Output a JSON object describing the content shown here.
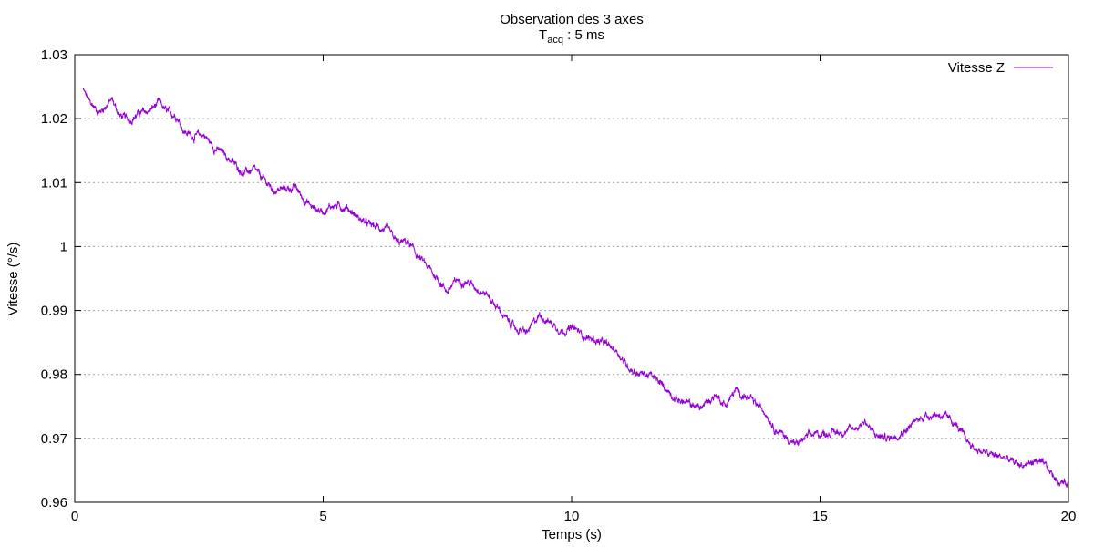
{
  "chart_data": {
    "type": "line",
    "title": "Observation des 3 axes",
    "subtitle": {
      "prefix": "T",
      "sub": "acq",
      "suffix": " : 5 ms"
    },
    "xlabel": "Temps (s)",
    "ylabel": "Vitesse (°/s)",
    "xlim": [
      0,
      20
    ],
    "ylim": [
      0.96,
      1.03
    ],
    "xticks": [
      "0",
      "5",
      "10",
      "15",
      "20"
    ],
    "yticks": [
      "0.96",
      "0.97",
      "0.98",
      "0.99",
      "1",
      "1.01",
      "1.02",
      "1.03"
    ],
    "grid": "horizontal dotted",
    "legend_position": "top-right",
    "series": [
      {
        "name": "Vitesse Z",
        "color": "#9400d3",
        "sample_period_s": 0.005,
        "x": [
          0.17,
          0.3,
          0.5,
          0.75,
          0.9,
          1.1,
          1.3,
          1.5,
          1.7,
          1.85,
          2.05,
          2.2,
          2.4,
          2.6,
          2.8,
          3.0,
          3.2,
          3.4,
          3.6,
          3.8,
          4.0,
          4.2,
          4.45,
          4.6,
          4.8,
          5.0,
          5.2,
          5.5,
          5.7,
          5.9,
          6.1,
          6.3,
          6.5,
          6.7,
          6.9,
          7.1,
          7.3,
          7.5,
          7.7,
          7.9,
          8.1,
          8.3,
          8.5,
          8.7,
          8.9,
          9.1,
          9.35,
          9.6,
          9.8,
          10.05,
          10.3,
          10.6,
          10.9,
          11.1,
          11.3,
          11.6,
          11.9,
          12.1,
          12.3,
          12.6,
          12.9,
          13.1,
          13.3,
          13.6,
          13.9,
          14.1,
          14.3,
          14.5,
          14.8,
          15.1,
          15.4,
          15.7,
          15.9,
          16.1,
          16.4,
          16.7,
          16.9,
          17.1,
          17.4,
          17.7,
          17.9,
          18.1,
          18.4,
          18.7,
          18.9,
          19.1,
          19.35,
          19.55,
          19.8,
          20.0
        ],
        "y": [
          1.0245,
          1.0225,
          1.021,
          1.023,
          1.0205,
          1.0198,
          1.0208,
          1.0212,
          1.0225,
          1.021,
          1.0205,
          1.018,
          1.0172,
          1.0175,
          1.0155,
          1.0145,
          1.013,
          1.0115,
          1.012,
          1.0105,
          1.0088,
          1.009,
          1.0092,
          1.0075,
          1.006,
          1.0055,
          1.0065,
          1.006,
          1.0045,
          1.0035,
          1.003,
          1.0025,
          1.0005,
          1.0008,
          0.9985,
          0.9968,
          0.995,
          0.993,
          0.9948,
          0.9945,
          0.9935,
          0.9925,
          0.9905,
          0.9885,
          0.987,
          0.9865,
          0.9893,
          0.988,
          0.9868,
          0.9872,
          0.9858,
          0.985,
          0.9838,
          0.9815,
          0.9803,
          0.9798,
          0.9778,
          0.9762,
          0.9755,
          0.9748,
          0.9768,
          0.9752,
          0.9775,
          0.976,
          0.9742,
          0.9715,
          0.9703,
          0.969,
          0.9705,
          0.9708,
          0.971,
          0.9715,
          0.9728,
          0.9705,
          0.97,
          0.9712,
          0.9725,
          0.9735,
          0.9738,
          0.9725,
          0.9702,
          0.9685,
          0.9675,
          0.967,
          0.9662,
          0.9658,
          0.9665,
          0.9655,
          0.9632,
          0.963
        ]
      }
    ]
  }
}
